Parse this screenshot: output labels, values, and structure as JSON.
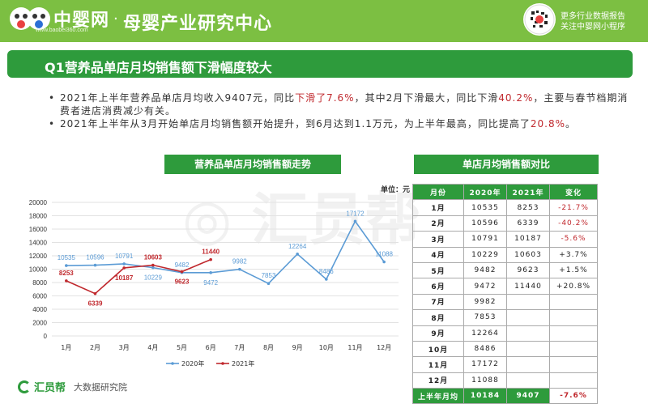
{
  "header": {
    "logo_text": "中婴网",
    "logo_url": "www.baobei360.com",
    "brand_title": "母婴产业研究中心",
    "promo_line1": "更多行业数据报告",
    "promo_line2": "关注中婴网小程序"
  },
  "title": "Q1营养品单店月均销售额下滑幅度较大",
  "bullets": {
    "b1_a": "2021年上半年营养品单店月均收入9407元，同比",
    "b1_hl1": "下滑了7.6%",
    "b1_b": "，其中2月下滑最大，同比下滑",
    "b1_hl2": "40.2%",
    "b1_c": "，主要与春节档期消费者进店消费减少有关。",
    "b2_a": "2021年上半年从3月开始单店月均销售额开始提升，到6月达到1.1万元，为上半年最高，同比提高了",
    "b2_hl": "20.8%",
    "b2_b": "。"
  },
  "chart_heading": "营养品单店月均销售额走势",
  "table_heading": "单店月均销售额对比",
  "unit_label": "单位：元",
  "chart_data": {
    "type": "line",
    "categories": [
      "1月",
      "2月",
      "3月",
      "4月",
      "5月",
      "6月",
      "7月",
      "8月",
      "9月",
      "10月",
      "11月",
      "12月"
    ],
    "series": [
      {
        "name": "2020年",
        "color": "#5b9bd5",
        "values": [
          10535,
          10596,
          10791,
          10229,
          9482,
          9472,
          9982,
          7853,
          12264,
          8486,
          17172,
          11088
        ]
      },
      {
        "name": "2021年",
        "color": "#c0282d",
        "values": [
          8253,
          6339,
          10187,
          10603,
          9623,
          11440,
          null,
          null,
          null,
          null,
          null,
          null
        ]
      }
    ],
    "ylim": [
      0,
      20000
    ],
    "yticks": [
      0,
      2000,
      4000,
      6000,
      8000,
      10000,
      12000,
      14000,
      16000,
      18000,
      20000
    ],
    "grid": true,
    "legend": "bottom"
  },
  "table": {
    "headers": [
      "月份",
      "2020年",
      "2021年",
      "变化"
    ],
    "rows": [
      [
        "1月",
        "10535",
        "8253",
        "-21.7%"
      ],
      [
        "2月",
        "10596",
        "6339",
        "-40.2%"
      ],
      [
        "3月",
        "10791",
        "10187",
        "-5.6%"
      ],
      [
        "4月",
        "10229",
        "10603",
        "+3.7%"
      ],
      [
        "5月",
        "9482",
        "9623",
        "+1.5%"
      ],
      [
        "6月",
        "9472",
        "11440",
        "+20.8%"
      ],
      [
        "7月",
        "9982",
        "",
        ""
      ],
      [
        "8月",
        "7853",
        "",
        ""
      ],
      [
        "9月",
        "12264",
        "",
        ""
      ],
      [
        "10月",
        "8486",
        "",
        ""
      ],
      [
        "11月",
        "17172",
        "",
        ""
      ],
      [
        "12月",
        "11088",
        "",
        ""
      ]
    ],
    "total": [
      "上半年月均",
      "10184",
      "9407",
      "-7.6%"
    ]
  },
  "footer": {
    "brand": "汇员帮",
    "sub": "大数据研究院"
  },
  "colors": {
    "green": "#7cbf42",
    "dark_green": "#2e9b3c",
    "red": "#c0282d",
    "blue": "#5b9bd5"
  }
}
